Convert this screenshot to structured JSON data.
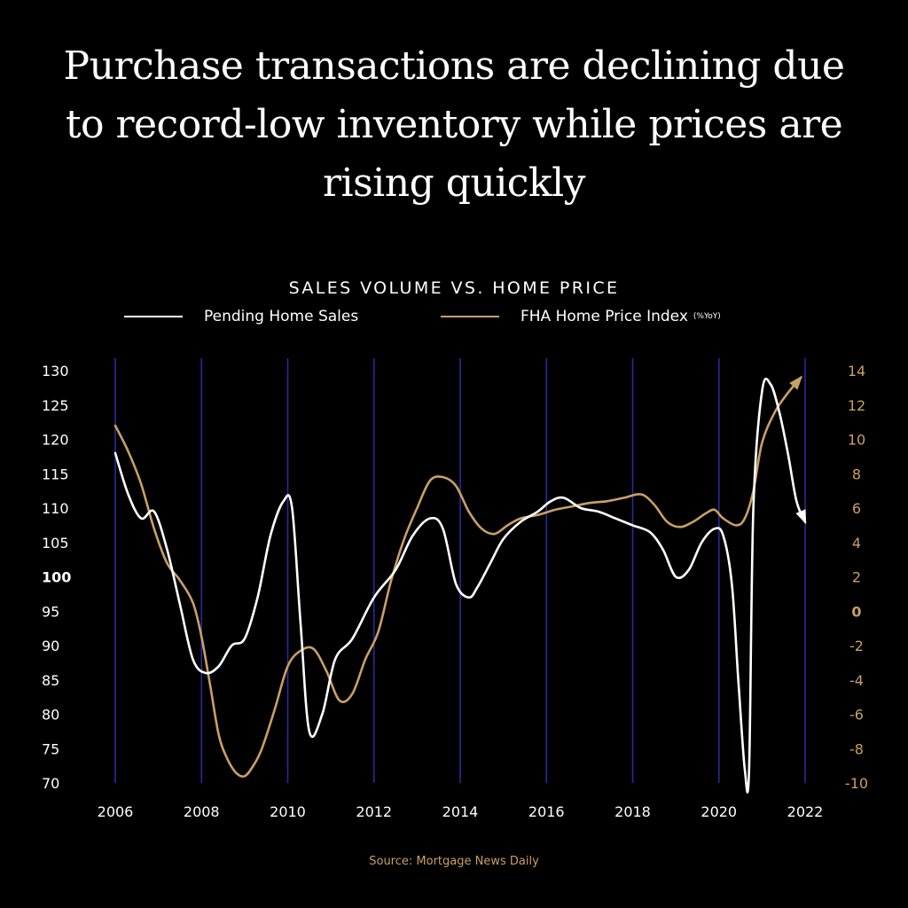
{
  "headline": {
    "line1": "Purchase transactions are declining due",
    "line2": "to  record-low inventory while prices are",
    "line3": "rising quickly"
  },
  "source": "Source: Mortgage News Daily",
  "colors": {
    "background": "#000000",
    "white_series": "#ffffff",
    "gold_series": "#c9a064",
    "gridlines": "#2a2a9c"
  },
  "chart_data": {
    "type": "line",
    "title": "SALES VOLUME VS. HOME PRICE",
    "legend": [
      {
        "name": "Pending Home Sales",
        "note": ""
      },
      {
        "name": "FHA Home Price Index",
        "note": "(%YoY)"
      }
    ],
    "legend_position": "top",
    "x_ticks": [
      "2006",
      "2008",
      "2010",
      "2012",
      "2014",
      "2016",
      "2018",
      "2020",
      "2022"
    ],
    "xlim": [
      2006,
      2022
    ],
    "left_axis": {
      "ticks": [
        "130",
        "125",
        "120",
        "115",
        "110",
        "105",
        "100",
        "95",
        "90",
        "85",
        "80",
        "75",
        "70"
      ],
      "ylim": [
        70,
        130
      ],
      "bold_tick": "100"
    },
    "right_axis": {
      "ticks": [
        "14",
        "12",
        "10",
        "8",
        "6",
        "4",
        "2",
        "0",
        "-2",
        "-4",
        "-6",
        "-8",
        "-10"
      ],
      "ylim": [
        -10,
        14
      ],
      "bold_tick": "0"
    },
    "grid": "vertical",
    "series": [
      {
        "name": "Pending Home Sales",
        "axis": "left",
        "color": "#ffffff",
        "end_arrow": true,
        "points": [
          [
            2006.0,
            118
          ],
          [
            2006.3,
            112
          ],
          [
            2006.6,
            108.5
          ],
          [
            2006.9,
            109.5
          ],
          [
            2007.2,
            104
          ],
          [
            2007.5,
            96
          ],
          [
            2007.8,
            88
          ],
          [
            2008.1,
            86
          ],
          [
            2008.4,
            87
          ],
          [
            2008.7,
            90
          ],
          [
            2009.0,
            91
          ],
          [
            2009.3,
            97
          ],
          [
            2009.6,
            106
          ],
          [
            2009.9,
            111
          ],
          [
            2010.1,
            110
          ],
          [
            2010.3,
            93
          ],
          [
            2010.5,
            77.5
          ],
          [
            2010.8,
            80
          ],
          [
            2011.1,
            88
          ],
          [
            2011.5,
            91
          ],
          [
            2012.0,
            97
          ],
          [
            2012.5,
            101
          ],
          [
            2012.9,
            106
          ],
          [
            2013.3,
            108.5
          ],
          [
            2013.6,
            107
          ],
          [
            2013.9,
            99
          ],
          [
            2014.2,
            97
          ],
          [
            2014.4,
            98.5
          ],
          [
            2014.7,
            102
          ],
          [
            2015.0,
            105.5
          ],
          [
            2015.4,
            108
          ],
          [
            2015.8,
            109.5
          ],
          [
            2016.1,
            111
          ],
          [
            2016.4,
            111.5
          ],
          [
            2016.8,
            110
          ],
          [
            2017.2,
            109.5
          ],
          [
            2017.6,
            108.5
          ],
          [
            2018.0,
            107.5
          ],
          [
            2018.4,
            106.5
          ],
          [
            2018.7,
            104
          ],
          [
            2019.0,
            100
          ],
          [
            2019.3,
            101
          ],
          [
            2019.6,
            105
          ],
          [
            2019.9,
            107
          ],
          [
            2020.1,
            106
          ],
          [
            2020.3,
            99
          ],
          [
            2020.45,
            85
          ],
          [
            2020.6,
            72
          ],
          [
            2020.7,
            72
          ],
          [
            2020.8,
            110
          ],
          [
            2021.0,
            127
          ],
          [
            2021.2,
            128
          ],
          [
            2021.4,
            124
          ],
          [
            2021.6,
            118
          ],
          [
            2021.8,
            111
          ],
          [
            2022.0,
            108
          ]
        ]
      },
      {
        "name": "FHA Home Price Index",
        "axis": "right",
        "color": "#c9a064",
        "end_arrow": true,
        "points": [
          [
            2006.0,
            10.8
          ],
          [
            2006.3,
            9.3
          ],
          [
            2006.6,
            7.4
          ],
          [
            2006.9,
            4.8
          ],
          [
            2007.2,
            2.8
          ],
          [
            2007.5,
            1.8
          ],
          [
            2007.8,
            0.5
          ],
          [
            2008.0,
            -1.5
          ],
          [
            2008.2,
            -4.3
          ],
          [
            2008.4,
            -7.2
          ],
          [
            2008.6,
            -8.6
          ],
          [
            2008.8,
            -9.4
          ],
          [
            2009.0,
            -9.6
          ],
          [
            2009.2,
            -9
          ],
          [
            2009.4,
            -8
          ],
          [
            2009.7,
            -5.7
          ],
          [
            2010.0,
            -3.2
          ],
          [
            2010.3,
            -2.3
          ],
          [
            2010.6,
            -2.2
          ],
          [
            2010.9,
            -3.5
          ],
          [
            2011.2,
            -5.2
          ],
          [
            2011.5,
            -4.8
          ],
          [
            2011.8,
            -2.8
          ],
          [
            2012.1,
            -1.2
          ],
          [
            2012.4,
            1.8
          ],
          [
            2012.7,
            4.2
          ],
          [
            2013.0,
            6
          ],
          [
            2013.3,
            7.6
          ],
          [
            2013.6,
            7.8
          ],
          [
            2013.9,
            7.3
          ],
          [
            2014.2,
            5.8
          ],
          [
            2014.5,
            4.8
          ],
          [
            2014.8,
            4.5
          ],
          [
            2015.1,
            5
          ],
          [
            2015.4,
            5.4
          ],
          [
            2015.8,
            5.6
          ],
          [
            2016.2,
            5.9
          ],
          [
            2016.6,
            6.1
          ],
          [
            2017.0,
            6.3
          ],
          [
            2017.4,
            6.4
          ],
          [
            2017.8,
            6.6
          ],
          [
            2018.2,
            6.8
          ],
          [
            2018.5,
            6.2
          ],
          [
            2018.8,
            5.2
          ],
          [
            2019.1,
            4.9
          ],
          [
            2019.4,
            5.2
          ],
          [
            2019.7,
            5.7
          ],
          [
            2019.9,
            5.9
          ],
          [
            2020.1,
            5.4
          ],
          [
            2020.4,
            5.0
          ],
          [
            2020.6,
            5.4
          ],
          [
            2020.8,
            7
          ],
          [
            2021.0,
            9.8
          ],
          [
            2021.3,
            11.6
          ],
          [
            2021.6,
            12.7
          ],
          [
            2021.9,
            13.6
          ]
        ]
      }
    ]
  }
}
